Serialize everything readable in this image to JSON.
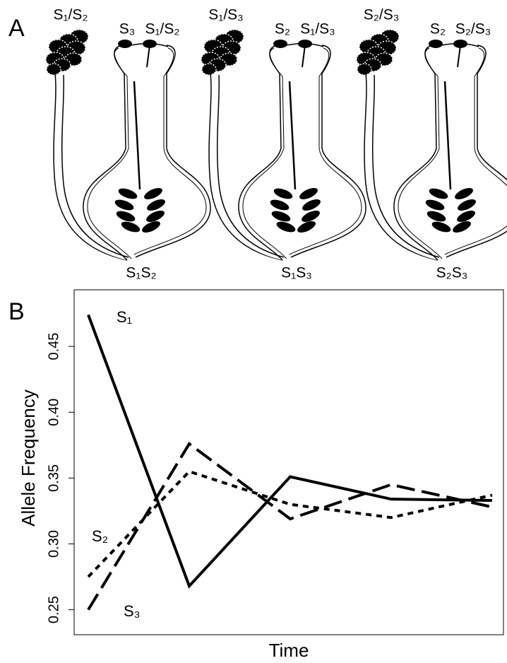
{
  "diagram": {
    "panel_label": "A",
    "groups": [
      {
        "pollen": "S₁/S₂",
        "stigmas": [
          "S₃",
          "S₁/S₂"
        ],
        "genotype": "S₁S₂"
      },
      {
        "pollen": "S₁/S₃",
        "stigmas": [
          "S₂",
          "S₁/S₃"
        ],
        "genotype": "S₁S₃"
      },
      {
        "pollen": "S₂/S₃",
        "stigmas": [
          "S₂",
          "S₂/S₃"
        ],
        "genotype": "S₂S₃"
      }
    ]
  },
  "chart_data": {
    "type": "line",
    "panel_label": "B",
    "x_label": "Time",
    "y_label": "Allele Frequency",
    "categories": [
      null,
      null,
      null,
      null,
      null
    ],
    "series": [
      {
        "name": "S₁",
        "color": "#000000",
        "linestyle": "solid",
        "values": [
          0.474,
          0.268,
          0.351,
          0.334,
          0.333
        ]
      },
      {
        "name": "S₂",
        "color": "#000000",
        "linestyle": "dotted",
        "values": [
          0.275,
          0.355,
          0.33,
          0.32,
          0.337
        ]
      },
      {
        "name": "S₃",
        "color": "#000000",
        "linestyle": "dashed",
        "values": [
          0.25,
          0.376,
          0.319,
          0.345,
          0.328
        ]
      }
    ],
    "ylim": [
      0.231,
      0.493
    ],
    "yticks": [
      0.25,
      {
        "value": 0.3,
        "label": "0.30"
      },
      0.35,
      {
        "value": 0.4,
        "label": "0.40"
      },
      0.45
    ]
  }
}
